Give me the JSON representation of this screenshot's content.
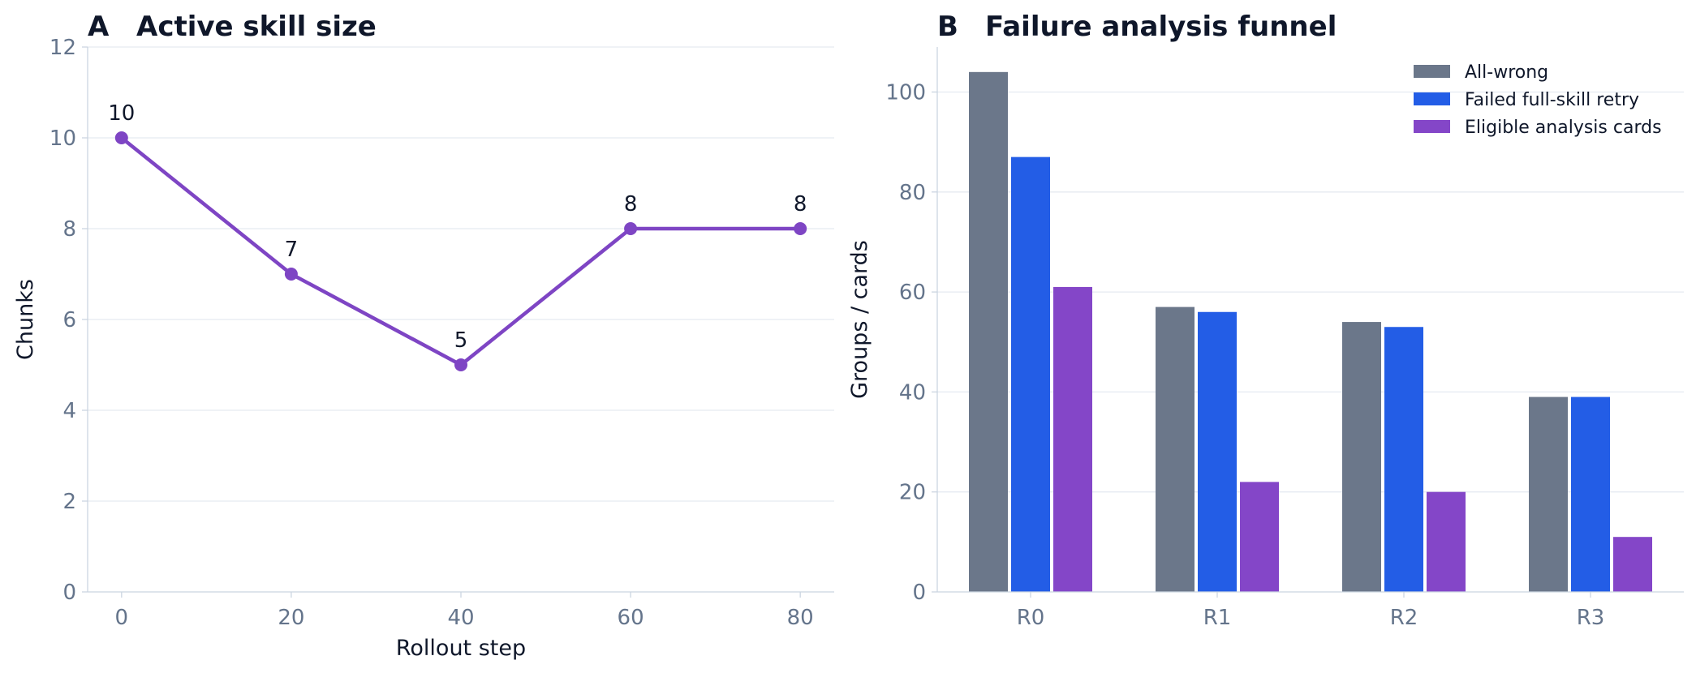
{
  "chart_data": [
    {
      "panel": "A",
      "type": "line",
      "title": "Active skill size",
      "xlabel": "Rollout step",
      "ylabel": "Chunks",
      "x": [
        0,
        20,
        40,
        60,
        80
      ],
      "values": [
        10,
        7,
        5,
        8,
        8
      ],
      "data_labels": [
        "10",
        "7",
        "5",
        "8",
        "8"
      ],
      "xticks": [
        "0",
        "20",
        "40",
        "60",
        "80"
      ],
      "yticks": [
        "0",
        "2",
        "4",
        "6",
        "8",
        "10",
        "12"
      ],
      "xlim": [
        -4,
        84
      ],
      "ylim": [
        0,
        12
      ],
      "grid": "horizontal",
      "color": "#7e45c4"
    },
    {
      "panel": "B",
      "type": "bar",
      "title": "Failure analysis funnel",
      "xlabel": "",
      "ylabel": "Groups / cards",
      "categories": [
        "R0",
        "R1",
        "R2",
        "R3"
      ],
      "series": [
        {
          "name": "All-wrong",
          "values": [
            104,
            57,
            54,
            39
          ],
          "color": "#6b778a"
        },
        {
          "name": "Failed full-skill retry",
          "values": [
            87,
            56,
            53,
            39
          ],
          "color": "#235de6"
        },
        {
          "name": "Eligible analysis cards",
          "values": [
            61,
            22,
            20,
            11
          ],
          "color": "#8446c8"
        }
      ],
      "yticks": [
        "0",
        "20",
        "40",
        "60",
        "80",
        "100"
      ],
      "ylim": [
        0,
        109
      ],
      "grid": "horizontal",
      "legend": "top-right"
    }
  ]
}
